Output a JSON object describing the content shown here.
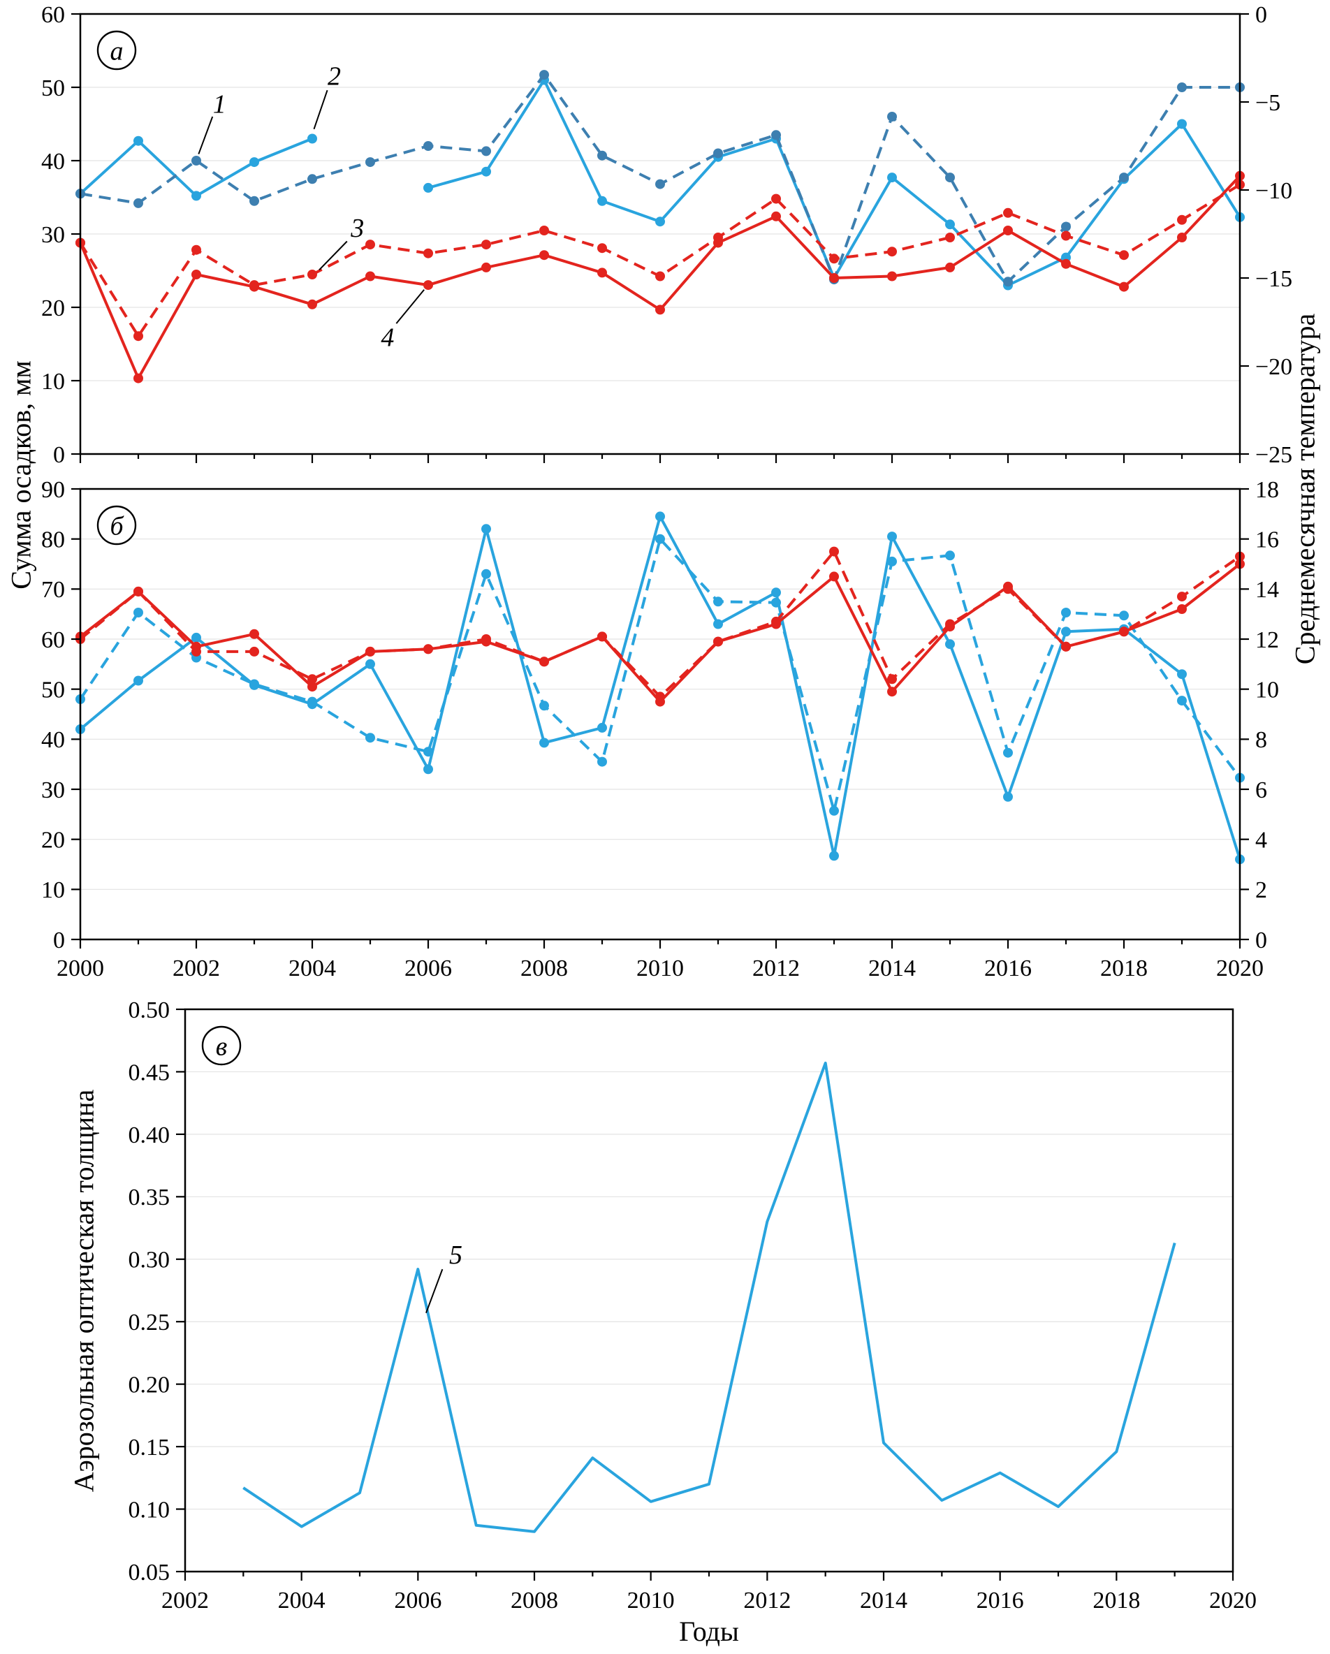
{
  "figure": {
    "left_axis_label": "Сумма осадков, мм",
    "right_axis_label": "Среднемесячная температура",
    "aod_axis_label": "Аэрозольная оптическая толщина",
    "x_axis_label": "Годы",
    "colors": {
      "blue_solid": "#29A4DE",
      "blue_dashed_dark": "#3D7FB0",
      "red": "#E3241E",
      "grid": "#E3E3E3",
      "frame": "#000000"
    }
  },
  "chart_data": [
    {
      "id": "panel_a",
      "letter": "а",
      "type": "line",
      "x_range": [
        2000,
        2020
      ],
      "x_years": [
        2000,
        2001,
        2002,
        2003,
        2004,
        2005,
        2006,
        2007,
        2008,
        2009,
        2010,
        2011,
        2012,
        2013,
        2014,
        2015,
        2016,
        2017,
        2018,
        2019,
        2020
      ],
      "x_tick_labels_visible": false,
      "left_axis": {
        "range": [
          0,
          60
        ],
        "ticks": [
          0,
          10,
          20,
          30,
          40,
          50,
          60
        ]
      },
      "right_axis": {
        "range": [
          -25,
          0
        ],
        "ticks": [
          -25,
          -20,
          -15,
          -10,
          -5,
          0
        ],
        "tick_labels": [
          "−25",
          "−20",
          "−15",
          "−10",
          "−5",
          "0"
        ]
      },
      "grid": "horizontal",
      "series": [
        {
          "label": "1",
          "axis": "left",
          "line": "solid",
          "color": "blue_solid",
          "markers": true,
          "values": [
            35.5,
            42.7,
            35.2,
            39.8,
            43.0,
            null,
            36.3,
            38.5,
            51.0,
            34.5,
            31.7,
            40.5,
            43.0,
            24.0,
            37.7,
            31.3,
            23.0,
            26.8,
            37.5,
            45.0,
            32.3
          ]
        },
        {
          "label": "2",
          "axis": "left",
          "line": "dashed",
          "color": "blue_dashed_dark",
          "markers": true,
          "values": [
            35.5,
            34.2,
            40.0,
            34.5,
            37.5,
            39.8,
            42.0,
            41.3,
            51.7,
            40.7,
            36.8,
            41.0,
            43.5,
            23.8,
            46.0,
            37.7,
            23.5,
            31.0,
            37.7,
            50.0,
            50.0
          ]
        },
        {
          "label": "3",
          "axis": "right",
          "line": "dashed",
          "color": "red",
          "markers": true,
          "values": [
            -13.0,
            -18.3,
            -13.4,
            -15.4,
            -14.8,
            -13.1,
            -13.6,
            -13.1,
            -12.3,
            -13.3,
            -14.9,
            -12.7,
            -10.5,
            -13.9,
            -13.5,
            -12.7,
            -11.3,
            -12.6,
            -13.7,
            -11.7,
            -9.7
          ]
        },
        {
          "label": "4",
          "axis": "right",
          "line": "solid",
          "color": "red",
          "markers": true,
          "values": [
            -13.0,
            -20.7,
            -14.8,
            -15.5,
            -16.5,
            -14.9,
            -15.4,
            -14.4,
            -13.7,
            -14.7,
            -16.8,
            -13.0,
            -11.5,
            -15.0,
            -14.9,
            -14.4,
            -12.3,
            -14.2,
            -15.5,
            -12.7,
            -9.2
          ]
        }
      ],
      "annotations": [
        {
          "text": "1",
          "tx": 2002.4,
          "ty": 47.8,
          "x1": 2002.28,
          "y1": 46.0,
          "x2": 2002.04,
          "y2": 40.9
        },
        {
          "text": "2",
          "tx": 2004.38,
          "ty": 51.6,
          "x1": 2004.26,
          "y1": 49.6,
          "x2": 2004.03,
          "y2": 44.3
        },
        {
          "text": "3",
          "tx": 2004.78,
          "ty": 30.9,
          "x1": 2004.6,
          "y1": 29.0,
          "x2": 2004.12,
          "y2": 25.1
        },
        {
          "text": "4",
          "tx": 2005.3,
          "ty": 16.0,
          "x1": 2005.45,
          "y1": 17.8,
          "x2": 2005.93,
          "y2": 22.4
        }
      ]
    },
    {
      "id": "panel_b",
      "letter": "б",
      "type": "line",
      "x_range": [
        2000,
        2020
      ],
      "x_years": [
        2000,
        2001,
        2002,
        2003,
        2004,
        2005,
        2006,
        2007,
        2008,
        2009,
        2010,
        2011,
        2012,
        2013,
        2014,
        2015,
        2016,
        2017,
        2018,
        2019,
        2020
      ],
      "x_tick_labels_visible": true,
      "left_axis": {
        "range": [
          0,
          90
        ],
        "ticks": [
          0,
          10,
          20,
          30,
          40,
          50,
          60,
          70,
          80,
          90
        ]
      },
      "right_axis": {
        "range": [
          0,
          18
        ],
        "ticks": [
          0,
          2,
          4,
          6,
          8,
          10,
          12,
          14,
          16,
          18
        ]
      },
      "grid": "horizontal",
      "series": [
        {
          "label": "1",
          "axis": "left",
          "line": "solid",
          "color": "blue_solid",
          "markers": true,
          "values": [
            42.0,
            51.7,
            60.3,
            50.8,
            47.0,
            55.0,
            34.0,
            82.0,
            39.3,
            42.3,
            84.5,
            63.0,
            69.3,
            16.7,
            80.5,
            59.0,
            28.5,
            61.5,
            62.0,
            53.0,
            16.0
          ]
        },
        {
          "label": "2",
          "axis": "left",
          "line": "dashed",
          "color": "blue_solid",
          "markers": true,
          "values": [
            48.0,
            65.3,
            56.3,
            51.0,
            47.5,
            40.3,
            37.5,
            73.0,
            46.7,
            35.5,
            80.0,
            67.5,
            67.3,
            25.7,
            75.5,
            76.7,
            37.3,
            65.3,
            64.7,
            47.7,
            32.3
          ]
        },
        {
          "label": "3",
          "axis": "right",
          "line": "dashed",
          "color": "red",
          "markers": true,
          "values": [
            12.0,
            13.9,
            11.5,
            11.5,
            10.4,
            11.5,
            11.6,
            12.0,
            11.1,
            12.1,
            9.7,
            11.9,
            12.7,
            15.5,
            10.4,
            12.6,
            14.0,
            11.7,
            12.3,
            13.7,
            15.3
          ]
        },
        {
          "label": "4",
          "axis": "right",
          "line": "solid",
          "color": "red",
          "markers": true,
          "values": [
            12.1,
            13.9,
            11.7,
            12.2,
            10.1,
            11.5,
            11.6,
            11.9,
            11.1,
            12.1,
            9.5,
            11.9,
            12.6,
            14.5,
            9.9,
            12.5,
            14.1,
            11.7,
            12.3,
            13.2,
            15.0
          ]
        }
      ],
      "annotations": []
    },
    {
      "id": "panel_v",
      "letter": "в",
      "type": "line",
      "x_range": [
        2002,
        2020
      ],
      "x_years": [
        2003,
        2004,
        2005,
        2006,
        2007,
        2008,
        2009,
        2010,
        2011,
        2012,
        2013,
        2014,
        2015,
        2016,
        2017,
        2018,
        2019
      ],
      "x_tick_labels_visible": true,
      "left_axis": {
        "range": [
          0.05,
          0.5
        ],
        "ticks": [
          0.05,
          0.1,
          0.15,
          0.2,
          0.25,
          0.3,
          0.35,
          0.4,
          0.45,
          0.5
        ],
        "tick_labels": [
          "0.05",
          "0.10",
          "0.15",
          "0.20",
          "0.25",
          "0.30",
          "0.35",
          "0.40",
          "0.45",
          "0.50"
        ]
      },
      "right_axis": null,
      "grid": "horizontal",
      "series": [
        {
          "label": "5",
          "axis": "left",
          "line": "solid",
          "color": "blue_solid",
          "markers": false,
          "values": [
            0.117,
            0.086,
            0.113,
            0.292,
            0.087,
            0.082,
            0.141,
            0.106,
            0.12,
            0.33,
            0.457,
            0.153,
            0.107,
            0.129,
            0.102,
            0.146,
            0.313
          ]
        }
      ],
      "annotations": [
        {
          "text": "5",
          "tx": 2006.65,
          "ty": 0.304,
          "x1": 2006.42,
          "y1": 0.292,
          "x2": 2006.14,
          "y2": 0.257
        }
      ]
    }
  ]
}
